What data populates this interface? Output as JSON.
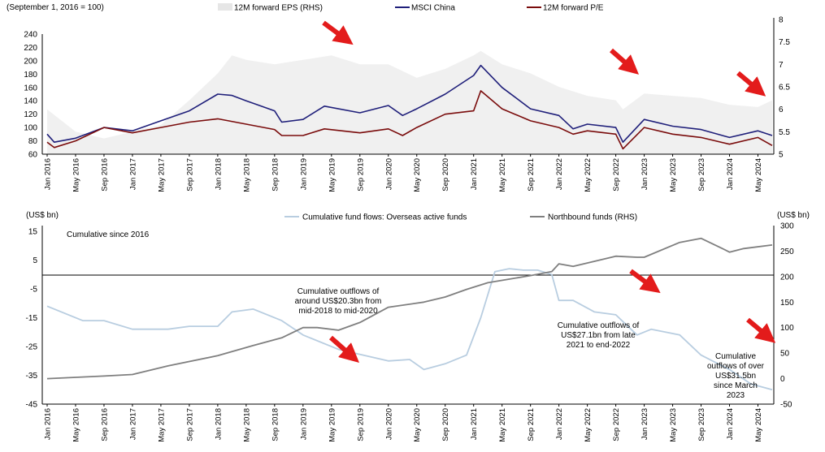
{
  "chart_data": [
    {
      "type": "line",
      "subtitle": "(September 1, 2016 = 100)",
      "x_tick_labels": [
        "Jan 2016",
        "May 2016",
        "Sep 2016",
        "Jan 2017",
        "May 2017",
        "Sep 2017",
        "Jan 2018",
        "May 2018",
        "Sep 2018",
        "Jan 2019",
        "May 2019",
        "Sep 2019",
        "Jan 2020",
        "May 2020",
        "Sep 2020",
        "Jan 2021",
        "May 2021",
        "Sep 2021",
        "Jan 2022",
        "May 2022",
        "Sep 2022",
        "Jan 2023",
        "May 2023",
        "Sep 2023",
        "Jan 2024",
        "May 2024"
      ],
      "y_left": {
        "ylim": [
          60,
          240
        ],
        "ticks": [
          "60",
          "80",
          "100",
          "120",
          "140",
          "160",
          "180",
          "200",
          "220",
          "240"
        ]
      },
      "y_right": {
        "ylim": [
          5,
          8
        ],
        "ticks": [
          "5",
          "5.5",
          "6",
          "6.5",
          "7",
          "7.5",
          "8"
        ]
      },
      "legend": [
        "12M forward EPS (RHS)",
        "MSCI China",
        "12M forward P/E"
      ],
      "legend_position": "top",
      "series": [
        {
          "name": "12M forward EPS (RHS)",
          "type": "area",
          "axis": "right",
          "color": "#f0f0f0",
          "x": [
            "2016-01",
            "2016-05",
            "2016-09",
            "2017-01",
            "2017-05",
            "2017-09",
            "2018-01",
            "2018-03",
            "2018-05",
            "2018-09",
            "2019-01",
            "2019-05",
            "2019-09",
            "2020-01",
            "2020-05",
            "2020-09",
            "2021-01",
            "2021-02",
            "2021-05",
            "2021-09",
            "2022-01",
            "2022-05",
            "2022-09",
            "2022-10",
            "2023-01",
            "2023-05",
            "2023-09",
            "2024-01",
            "2024-05",
            "2024-07"
          ],
          "values": [
            6.0,
            5.5,
            5.35,
            5.5,
            5.65,
            6.2,
            6.8,
            7.2,
            7.1,
            7.0,
            7.1,
            7.2,
            7.0,
            7.0,
            6.7,
            6.9,
            7.2,
            7.3,
            7.0,
            6.8,
            6.5,
            6.3,
            6.2,
            6.0,
            6.35,
            6.3,
            6.25,
            6.1,
            6.05,
            6.2
          ]
        },
        {
          "name": "MSCI China",
          "type": "line",
          "axis": "left",
          "color": "#1f1f7a",
          "x": [
            "2016-01",
            "2016-02",
            "2016-05",
            "2016-09",
            "2017-01",
            "2017-05",
            "2017-09",
            "2018-01",
            "2018-03",
            "2018-05",
            "2018-09",
            "2018-10",
            "2019-01",
            "2019-04",
            "2019-09",
            "2020-01",
            "2020-03",
            "2020-05",
            "2020-09",
            "2021-01",
            "2021-02",
            "2021-05",
            "2021-09",
            "2022-01",
            "2022-03",
            "2022-05",
            "2022-09",
            "2022-10",
            "2023-01",
            "2023-05",
            "2023-09",
            "2024-01",
            "2024-05",
            "2024-07"
          ],
          "values": [
            90,
            78,
            84,
            100,
            95,
            110,
            125,
            150,
            148,
            140,
            125,
            108,
            112,
            132,
            122,
            133,
            118,
            128,
            150,
            178,
            193,
            160,
            128,
            118,
            98,
            105,
            100,
            78,
            112,
            102,
            97,
            85,
            95,
            88
          ]
        },
        {
          "name": "12M forward P/E",
          "type": "line",
          "axis": "left",
          "color": "#7a0c0c",
          "x": [
            "2016-01",
            "2016-02",
            "2016-05",
            "2016-09",
            "2017-01",
            "2017-05",
            "2017-09",
            "2018-01",
            "2018-05",
            "2018-09",
            "2018-10",
            "2019-01",
            "2019-04",
            "2019-09",
            "2020-01",
            "2020-03",
            "2020-05",
            "2020-09",
            "2021-01",
            "2021-02",
            "2021-05",
            "2021-09",
            "2022-01",
            "2022-03",
            "2022-05",
            "2022-09",
            "2022-10",
            "2023-01",
            "2023-05",
            "2023-09",
            "2024-01",
            "2024-05",
            "2024-07"
          ],
          "values": [
            78,
            70,
            80,
            100,
            92,
            100,
            108,
            113,
            105,
            97,
            88,
            88,
            98,
            92,
            98,
            88,
            100,
            120,
            125,
            155,
            128,
            110,
            100,
            90,
            95,
            90,
            68,
            100,
            90,
            85,
            75,
            85,
            73
          ]
        }
      ]
    },
    {
      "type": "line",
      "x_tick_labels": [
        "Jan 2016",
        "May 2016",
        "Sep 2016",
        "Jan 2017",
        "May 2017",
        "Sep 2017",
        "Jan 2018",
        "May 2018",
        "Sep 2018",
        "Jan 2019",
        "May 2019",
        "Sep 2019",
        "Jan 2020",
        "May 2020",
        "Sep 2020",
        "Jan 2021",
        "May 2021",
        "Sep 2021",
        "Jan 2022",
        "May 2022",
        "Sep 2022",
        "Jan 2023",
        "May 2023",
        "Sep 2023",
        "Jan 2024",
        "May 2024"
      ],
      "y_left": {
        "label": "(US$ bn)",
        "ylim": [
          -45,
          20
        ],
        "ticks": [
          "15",
          "5",
          "-5",
          "-15",
          "-25",
          "-35",
          "-45"
        ]
      },
      "y_right": {
        "label": "(US$ bn)",
        "ylim": [
          -50,
          300
        ],
        "ticks": [
          "300",
          "250",
          "200",
          "150",
          "100",
          "50",
          "0",
          "-50"
        ]
      },
      "legend": [
        "Cumulative fund flows: Overseas active funds",
        "Northbound funds (RHS)"
      ],
      "legend_position": "top",
      "series": [
        {
          "name": "Cumulative fund flows: Overseas active funds",
          "axis": "left",
          "color": "#b8cde0",
          "x": [
            "2016-01",
            "2016-06",
            "2016-09",
            "2017-01",
            "2017-06",
            "2017-09",
            "2018-01",
            "2018-03",
            "2018-06",
            "2018-10",
            "2019-01",
            "2019-06",
            "2020-01",
            "2020-04",
            "2020-06",
            "2020-09",
            "2020-12",
            "2021-02",
            "2021-04",
            "2021-06",
            "2021-08",
            "2021-10",
            "2021-12",
            "2022-01",
            "2022-03",
            "2022-06",
            "2022-09",
            "2022-12",
            "2023-02",
            "2023-06",
            "2023-09",
            "2024-01",
            "2024-04",
            "2024-07"
          ],
          "values": [
            -11,
            -16,
            -16,
            -19,
            -19,
            -18,
            -18,
            -13,
            -12,
            -16,
            -21,
            -26,
            -30,
            -29.5,
            -33,
            -31,
            -28,
            -15,
            1,
            2,
            1.5,
            1.5,
            0,
            -9,
            -9,
            -13,
            -14,
            -21,
            -19,
            -21,
            -28,
            -33,
            -38,
            -40
          ]
        },
        {
          "name": "Northbound funds (RHS)",
          "axis": "right",
          "color": "#7f7f7f",
          "x": [
            "2016-01",
            "2016-09",
            "2017-01",
            "2017-06",
            "2018-01",
            "2018-06",
            "2018-10",
            "2019-01",
            "2019-03",
            "2019-06",
            "2019-09",
            "2020-01",
            "2020-06",
            "2020-09",
            "2020-12",
            "2021-03",
            "2021-06",
            "2021-09",
            "2021-12",
            "2022-01",
            "2022-03",
            "2022-06",
            "2022-09",
            "2022-12",
            "2023-01",
            "2023-06",
            "2023-09",
            "2023-12",
            "2024-01",
            "2024-03",
            "2024-07"
          ],
          "values": [
            0,
            5,
            8,
            25,
            45,
            65,
            80,
            100,
            100,
            95,
            110,
            140,
            150,
            160,
            175,
            188,
            195,
            202,
            210,
            225,
            220,
            230,
            240,
            238,
            238,
            267,
            275,
            255,
            248,
            255,
            262
          ]
        }
      ],
      "annotations": [
        {
          "text": "Cumulative since 2016"
        },
        {
          "text": "Cumulative outflows of around US$20.3bn from mid-2018 to mid-2020"
        },
        {
          "text": "Cumulative outflows of US$27.1bn from late 2021 to end-2022"
        },
        {
          "text": "Cumulative outflows of over US$31.5bn since March 2023"
        }
      ]
    }
  ]
}
